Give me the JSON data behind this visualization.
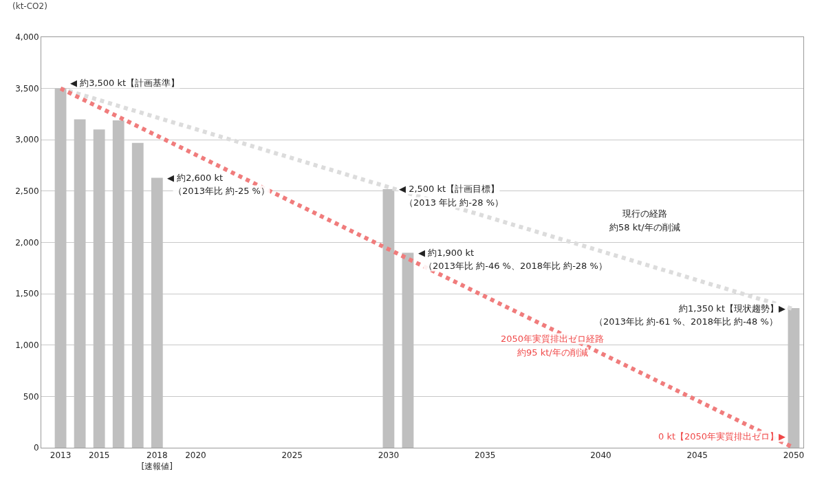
{
  "chart_data": {
    "type": "bar",
    "ylabel": "(kt-CO2)",
    "categories": [
      "2013",
      null,
      "2015",
      null,
      null,
      "2018\n[速報値]",
      null,
      "2020",
      null,
      null,
      null,
      null,
      "2025",
      null,
      null,
      null,
      null,
      "2030",
      null,
      null,
      null,
      null,
      "2035",
      null,
      null,
      null,
      null,
      null,
      "2040",
      null,
      null,
      null,
      null,
      "2045",
      null,
      null,
      null,
      null,
      "2050"
    ],
    "series": [
      {
        "color": "#bfbfbf",
        "values": [
          3500,
          3200,
          3100,
          3190,
          2970,
          2630,
          null,
          null,
          null,
          null,
          null,
          null,
          null,
          null,
          null,
          null,
          null,
          2520,
          1900,
          null,
          null,
          null,
          null,
          null,
          null,
          null,
          null,
          null,
          null,
          null,
          null,
          null,
          null,
          null,
          null,
          null,
          null,
          null,
          1360
        ]
      },
      {
        "type": "line",
        "color": "#dcdcdc",
        "line_style": "dotted",
        "values": [
          3500,
          null,
          null,
          null,
          null,
          null,
          null,
          null,
          null,
          null,
          null,
          null,
          null,
          null,
          null,
          null,
          null,
          null,
          null,
          null,
          null,
          null,
          null,
          null,
          null,
          null,
          null,
          null,
          null,
          null,
          null,
          null,
          null,
          null,
          null,
          null,
          null,
          null,
          1350
        ]
      },
      {
        "type": "line",
        "color": "#f07c7c",
        "line_style": "dotted",
        "values": [
          3500,
          null,
          null,
          null,
          null,
          null,
          null,
          null,
          null,
          null,
          null,
          null,
          null,
          null,
          null,
          null,
          null,
          null,
          null,
          null,
          null,
          null,
          null,
          null,
          null,
          null,
          null,
          null,
          null,
          null,
          null,
          null,
          null,
          null,
          null,
          null,
          null,
          null,
          0
        ]
      }
    ],
    "ylim": [
      0,
      4000
    ],
    "yticks": [
      0,
      500,
      {
        "value": 1000,
        "label": "1,000"
      },
      {
        "value": 1500,
        "label": "1,500"
      },
      {
        "value": 2000,
        "label": "2,000"
      },
      {
        "value": 2500,
        "label": "2,500"
      },
      {
        "value": 3000,
        "label": "3,000"
      },
      {
        "value": 3500,
        "label": "3,500"
      },
      {
        "value": 4000,
        "label": "4,000"
      }
    ],
    "grid": "y",
    "legend": false,
    "annotations": [
      "◀ 約3,500 kt【計画基準】",
      "◀ 約2,600 kt",
      "（2013年比 約-25 %）",
      "◀ 2,500 kt【計画目標】",
      "（2013 年比 約-28 %）",
      "◀ 約1,900 kt",
      "（2013年比 約-46 %、2018年比 約-28 %）",
      "現行の経路",
      "約58 kt/年の削減",
      "約1,350 kt【現状趨勢】▶",
      "（2013年比 約-61 %、2018年比 約-48 %）",
      "2050年実質排出ゼロ経路",
      "約95 kt/年の削減",
      "0 kt【2050年実質排出ゼロ】▶"
    ]
  }
}
